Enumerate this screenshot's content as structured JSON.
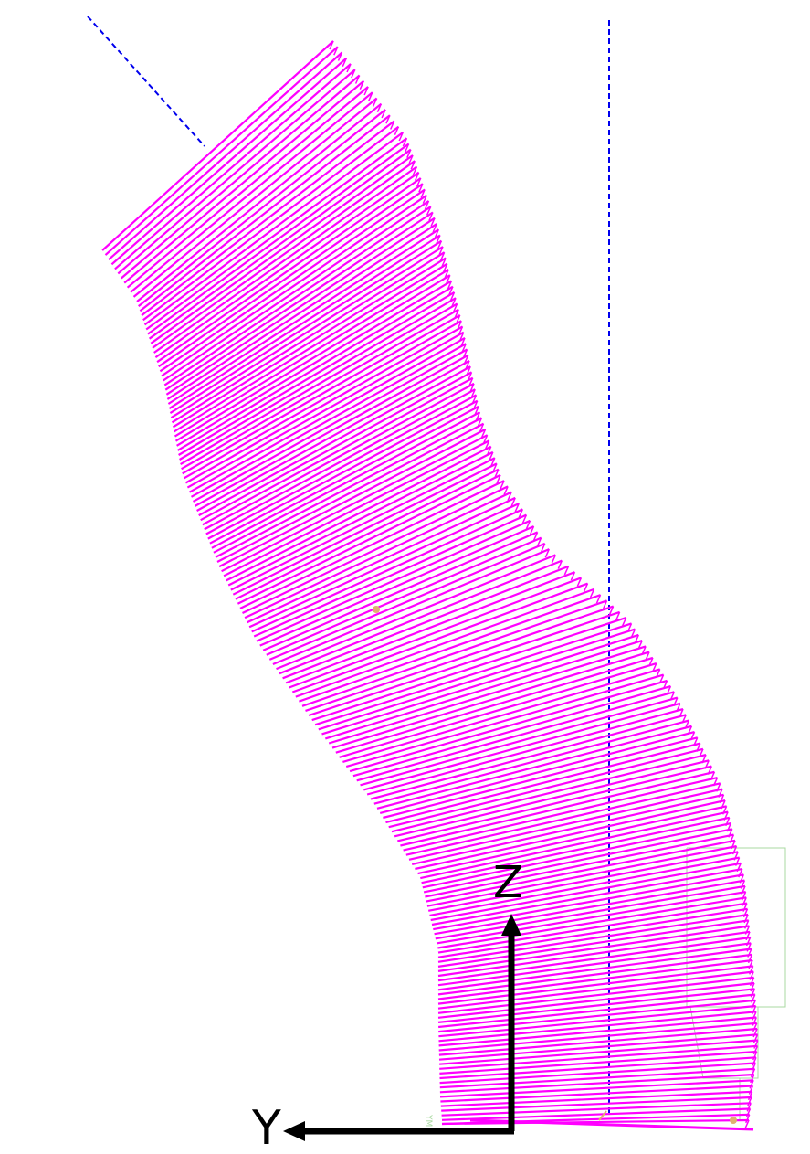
{
  "axes": {
    "z_label": "Z",
    "y_label": "Y"
  },
  "colors": {
    "sweep": "#ff00ff",
    "guide": "#0000ee",
    "axis": "#000000",
    "fixture": "#a8d8a0",
    "marker": "#e0b070",
    "background": "#ffffff"
  },
  "scene": {
    "sweep_line_count": 190,
    "small_mark": "YM"
  }
}
